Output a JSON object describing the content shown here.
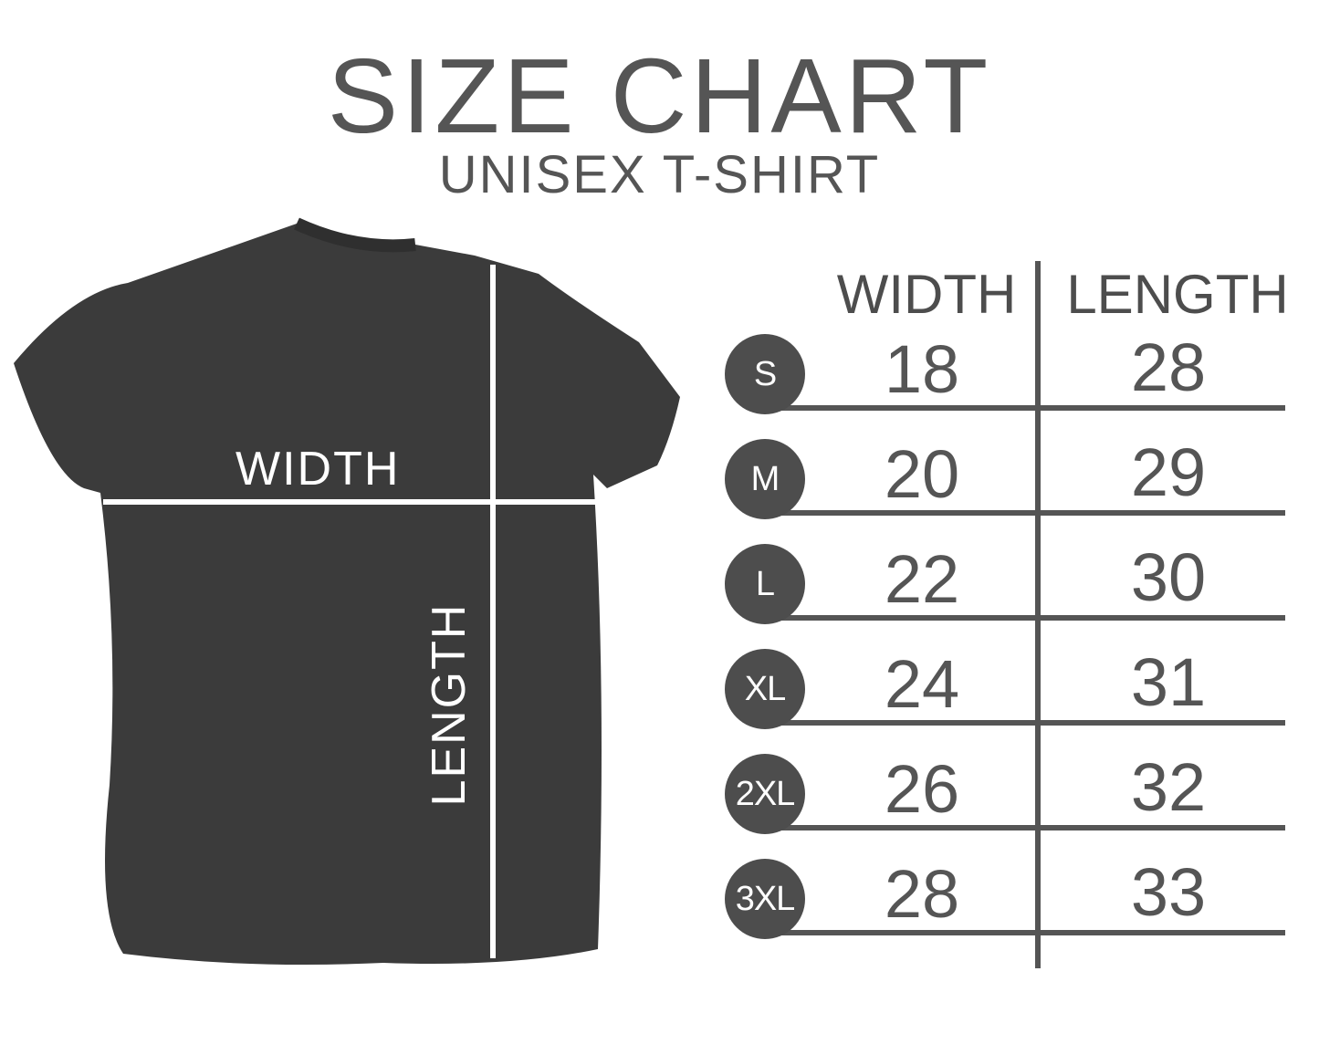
{
  "title": "SIZE CHART",
  "subtitle": "UNISEX T-SHIRT",
  "shirt": {
    "width_label": "WIDTH",
    "length_label": "LENGTH",
    "color": "#3b3b3b"
  },
  "table": {
    "headers": [
      "WIDTH",
      "LENGTH"
    ],
    "rows": [
      {
        "size": "S",
        "width": "18",
        "length": "28"
      },
      {
        "size": "M",
        "width": "20",
        "length": "29"
      },
      {
        "size": "L",
        "width": "22",
        "length": "30"
      },
      {
        "size": "XL",
        "width": "24",
        "length": "31"
      },
      {
        "size": "2XL",
        "width": "26",
        "length": "32"
      },
      {
        "size": "3XL",
        "width": "28",
        "length": "33"
      }
    ]
  },
  "colors": {
    "text": "#555555",
    "badge": "#4d4d4d"
  }
}
